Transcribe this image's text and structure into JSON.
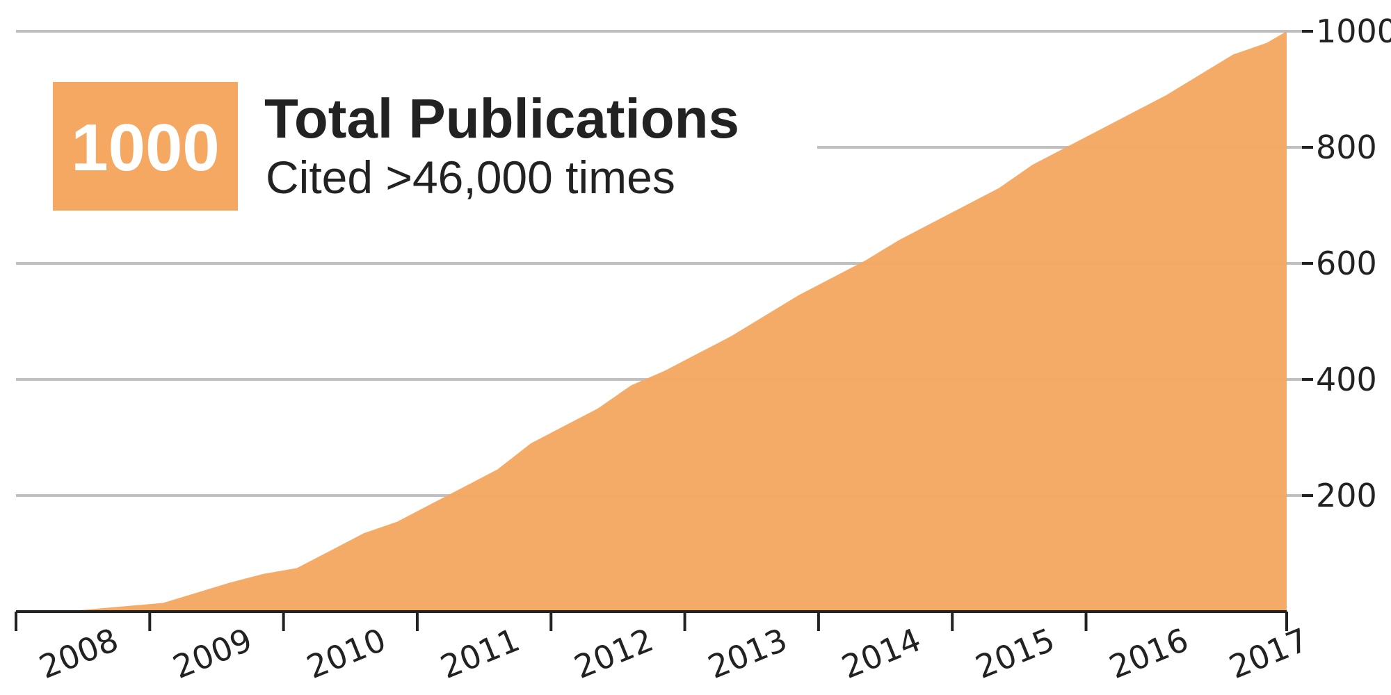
{
  "colors": {
    "area_fill": "#f5a862",
    "badge_fill": "#f5a862",
    "grid": "#c0c0c0",
    "axis": "#222222",
    "text": "#222222"
  },
  "badge": {
    "value": "1000"
  },
  "title": "Total Publications",
  "subtitle": "Cited >46,000 times",
  "chart_data": {
    "type": "area",
    "x_tick_labels": [
      "2008",
      "2009",
      "2010",
      "2011",
      "2012",
      "2013",
      "2014",
      "2015",
      "2016",
      "2017"
    ],
    "y_ticks": [
      200,
      400,
      600,
      800,
      1000
    ],
    "ylim": [
      0,
      1000
    ],
    "xlim": [
      2007.9,
      2017.4
    ],
    "y_axis_side": "right",
    "grid": true,
    "series": [
      {
        "x": [
          2008.25,
          2009.0,
          2009.5,
          2009.75,
          2010.0,
          2010.25,
          2010.5,
          2010.75,
          2011.0,
          2011.25,
          2011.5,
          2011.75,
          2012.0,
          2012.25,
          2012.5,
          2012.75,
          2013.0,
          2013.25,
          2013.5,
          2013.75,
          2014.0,
          2014.25,
          2014.5,
          2014.75,
          2015.0,
          2015.25,
          2015.5,
          2015.75,
          2016.0,
          2016.25,
          2016.5,
          2016.75,
          2017.0,
          2017.25,
          2017.4
        ],
        "values": [
          0,
          15,
          50,
          65,
          75,
          105,
          135,
          155,
          185,
          215,
          245,
          290,
          320,
          350,
          390,
          415,
          445,
          475,
          510,
          545,
          575,
          605,
          640,
          670,
          700,
          730,
          770,
          800,
          830,
          860,
          890,
          925,
          960,
          980,
          1000
        ]
      }
    ]
  }
}
